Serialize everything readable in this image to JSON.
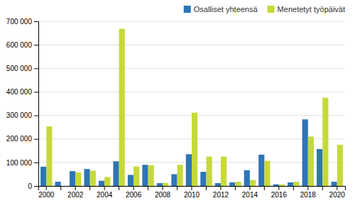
{
  "chart_data": {
    "type": "bar",
    "categories": [
      "2000",
      null,
      "2002",
      null,
      "2004",
      null,
      "2006",
      null,
      "2008",
      null,
      "2010",
      null,
      "2012",
      null,
      "2014",
      null,
      "2016",
      null,
      "2018",
      null,
      "2020"
    ],
    "series": [
      {
        "name": "Osalliset yhteensä",
        "color": "#2e75b6",
        "values": [
          82000,
          18000,
          63000,
          72000,
          22000,
          105000,
          47000,
          90000,
          12000,
          50000,
          135000,
          60000,
          12000,
          15000,
          67000,
          133000,
          7000,
          15000,
          283000,
          157000,
          18000
        ]
      },
      {
        "name": "Menetetyt työpäivät",
        "color": "#c6d93a",
        "values": [
          253000,
          0,
          58000,
          65000,
          38000,
          668000,
          83000,
          88000,
          13000,
          90000,
          312000,
          125000,
          125000,
          18000,
          25000,
          107000,
          7000,
          18000,
          210000,
          375000,
          175000
        ]
      }
    ],
    "ylim": [
      0,
      700000
    ],
    "yticks": [
      0,
      {
        "value": 100000,
        "label": "100 000"
      },
      {
        "value": 200000,
        "label": "200 000"
      },
      {
        "value": 300000,
        "label": "300 000"
      },
      {
        "value": 400000,
        "label": "400 000"
      },
      {
        "value": 500000,
        "label": "500 000"
      },
      {
        "value": 600000,
        "label": "600 000"
      },
      {
        "value": 700000,
        "label": "700 000"
      }
    ],
    "grid": true,
    "legend": "upper right"
  }
}
